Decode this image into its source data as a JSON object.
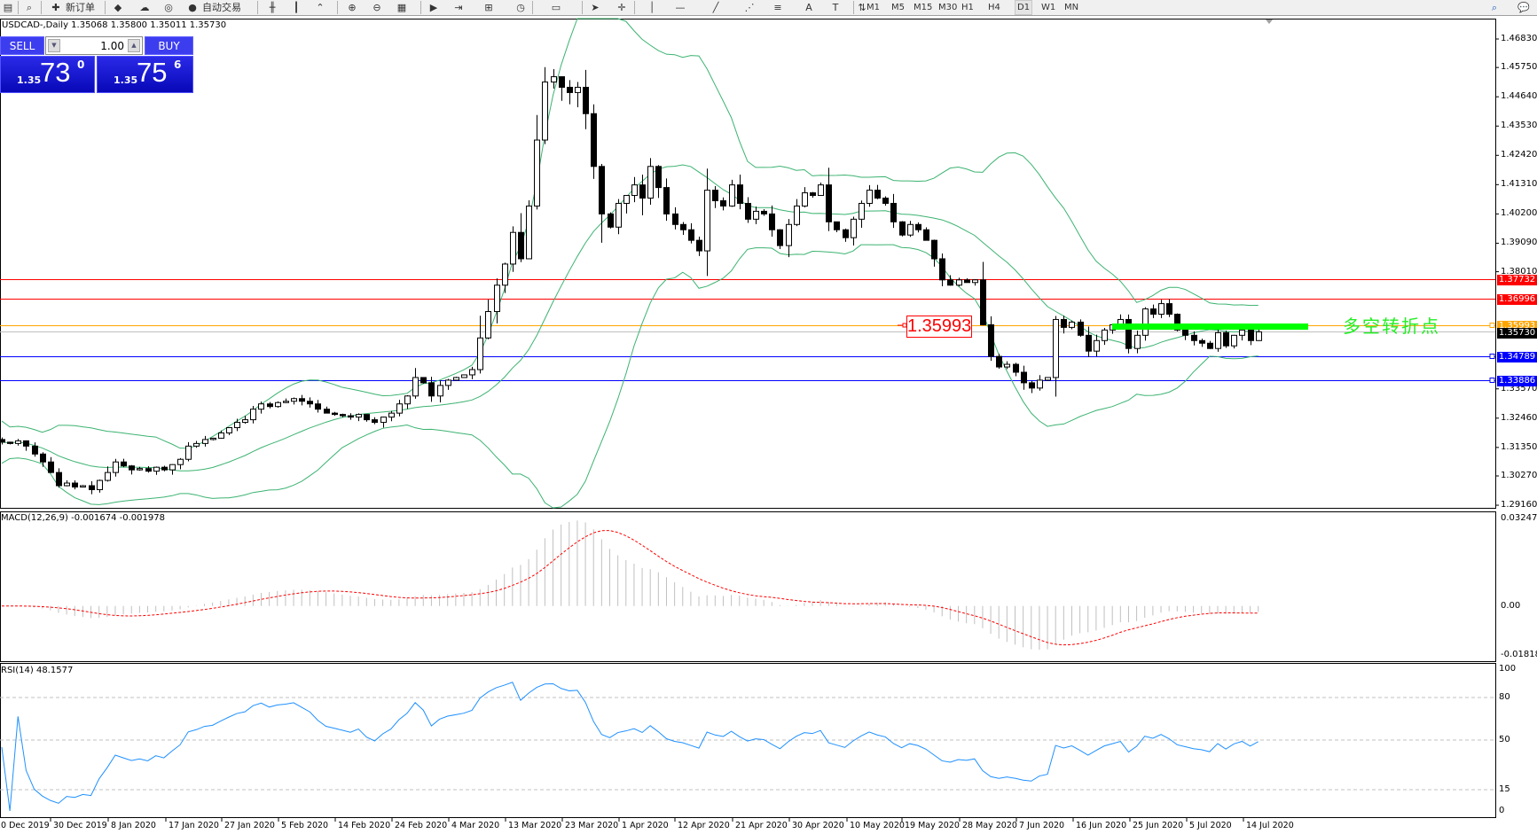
{
  "toolbar": {
    "new_order_label": "新订单",
    "auto_trade_label": "自动交易",
    "icons": [
      "file-icon",
      "zoom-window-icon",
      "new-order-icon",
      "market-watch-icon",
      "signals-icon",
      "radio-icon",
      "auto-trading-icon",
      "bar-chart-icon",
      "candlestick-icon",
      "line-chart-icon",
      "zoom-in-icon",
      "zoom-out-icon",
      "tile-windows-icon",
      "auto-scroll-icon",
      "chart-shift-icon",
      "indicators-icon",
      "periods-icon",
      "templates-icon",
      "cursor-icon",
      "crosshair-icon",
      "vertical-line-icon",
      "horizontal-line-icon",
      "trendline-icon",
      "equidistant-channel-icon",
      "fibonacci-icon",
      "text-icon",
      "text-label-icon",
      "arrows-icon"
    ],
    "timeframes": [
      "M1",
      "M5",
      "M15",
      "M30",
      "H1",
      "H4",
      "D1",
      "W1",
      "MN"
    ],
    "active_timeframe": "D1"
  },
  "chart_title": "USDCAD-,Daily  1.35068 1.35800 1.35011 1.35730",
  "trade_panel": {
    "sell_label": "SELL",
    "buy_label": "BUY",
    "lots": "1.00",
    "sell_price": {
      "prefix": "1.35",
      "big": "73",
      "sup": "0"
    },
    "buy_price": {
      "prefix": "1.35",
      "big": "75",
      "sup": "6"
    }
  },
  "price_axis_ticks": [
    "1.46830",
    "1.45750",
    "1.44640",
    "1.43530",
    "1.42420",
    "1.41310",
    "1.40200",
    "1.39090",
    "1.38010",
    "1.33570",
    "1.32460",
    "1.31350",
    "1.30270",
    "1.29160"
  ],
  "horizontal_lines": [
    {
      "price": "1.37732",
      "color": "#ff0000"
    },
    {
      "price": "1.36996",
      "color": "#ff0000"
    },
    {
      "price": "1.35993",
      "color": "#ffa500"
    },
    {
      "price": "1.34789",
      "color": "#0000ff"
    },
    {
      "price": "1.33886",
      "color": "#0000ff"
    }
  ],
  "last_price": {
    "price": "1.35730",
    "color": "#c0c0c0"
  },
  "annotations": {
    "price_box": "1.35993",
    "turning_point_text": "多空转折点",
    "turning_point_color": "#00ff00"
  },
  "macd": {
    "label": "MACD(12,26,9) -0.001674 -0.001978",
    "ticks": [
      "0.032478",
      "0.00",
      "-0.018182"
    ],
    "range": [
      -0.018182,
      0.032478
    ],
    "histogram_color": "#c0c0c0",
    "signal_color": "#ff0000"
  },
  "rsi": {
    "label": "RSI(14) 48.1577",
    "ticks": [
      "100",
      "80",
      "50",
      "15",
      "0"
    ],
    "levels": [
      80,
      50,
      15
    ],
    "color": "#1e90ff"
  },
  "date_labels": [
    "20 Dec 2019",
    "30 Dec 2019",
    "8 Jan 2020",
    "17 Jan 2020",
    "27 Jan 2020",
    "5 Feb 2020",
    "14 Feb 2020",
    "24 Feb 2020",
    "4 Mar 2020",
    "13 Mar 2020",
    "23 Mar 2020",
    "1 Apr 2020",
    "12 Apr 2020",
    "21 Apr 2020",
    "30 Apr 2020",
    "10 May 2020",
    "19 May 2020",
    "28 May 2020",
    "7 Jun 2020",
    "16 Jun 2020",
    "25 Jun 2020",
    "5 Jul 2020",
    "14 Jul 2020"
  ],
  "chart_data": {
    "type": "candlestick",
    "symbol": "USDCAD-",
    "timeframe": "Daily",
    "ylim": [
      1.2916,
      1.4683
    ],
    "bollinger_color": "#3cb371",
    "closes": [
      1.3155,
      1.315,
      1.316,
      1.314,
      1.311,
      1.308,
      1.304,
      1.299,
      1.3,
      1.2985,
      1.299,
      1.2975,
      1.301,
      1.304,
      1.308,
      1.3065,
      1.305,
      1.3055,
      1.3045,
      1.306,
      1.305,
      1.307,
      1.309,
      1.314,
      1.315,
      1.3165,
      1.317,
      1.319,
      1.321,
      1.323,
      1.324,
      1.328,
      1.33,
      1.329,
      1.3305,
      1.331,
      1.332,
      1.331,
      1.33,
      1.328,
      1.3265,
      1.326,
      1.3255,
      1.325,
      1.326,
      1.324,
      1.323,
      1.325,
      1.3265,
      1.33,
      1.333,
      1.34,
      1.338,
      1.333,
      1.337,
      1.339,
      1.34,
      1.341,
      1.343,
      1.355,
      1.365,
      1.375,
      1.383,
      1.395,
      1.385,
      1.405,
      1.43,
      1.452,
      1.454,
      1.45,
      1.448,
      1.45,
      1.44,
      1.42,
      1.402,
      1.397,
      1.406,
      1.409,
      1.413,
      1.408,
      1.42,
      1.412,
      1.402,
      1.398,
      1.396,
      1.392,
      1.388,
      1.411,
      1.407,
      1.405,
      1.413,
      1.406,
      1.4,
      1.403,
      1.402,
      1.396,
      1.39,
      1.398,
      1.405,
      1.41,
      1.409,
      1.413,
      1.399,
      1.396,
      1.393,
      1.4,
      1.406,
      1.411,
      1.408,
      1.406,
      1.399,
      1.394,
      1.398,
      1.396,
      1.392,
      1.385,
      1.377,
      1.375,
      1.377,
      1.376,
      1.377,
      1.36,
      1.348,
      1.344,
      1.345,
      1.342,
      1.338,
      1.336,
      1.339,
      1.34,
      1.362,
      1.359,
      1.361,
      1.356,
      1.35,
      1.354,
      1.358,
      1.36,
      1.362,
      1.351,
      1.356,
      1.366,
      1.364,
      1.368,
      1.364,
      1.358,
      1.356,
      1.354,
      1.353,
      1.351,
      1.357,
      1.352,
      1.356,
      1.358,
      1.354,
      1.3573
    ]
  }
}
